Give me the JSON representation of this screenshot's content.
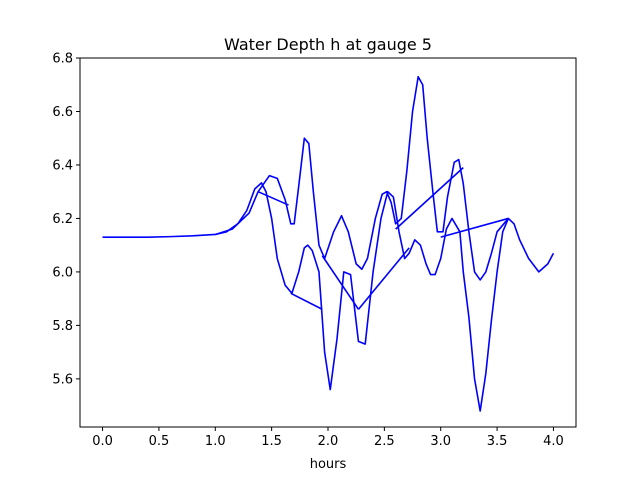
{
  "chart_data": {
    "type": "line",
    "title": "Water Depth h at gauge 5",
    "xlabel": "hours",
    "ylabel": "",
    "xlim": [
      -0.2,
      4.2
    ],
    "ylim": [
      5.42,
      6.8
    ],
    "xticks": [
      0.0,
      0.5,
      1.0,
      1.5,
      2.0,
      2.5,
      3.0,
      3.5,
      4.0
    ],
    "xtick_labels": [
      "0.0",
      "0.5",
      "1.0",
      "1.5",
      "2.0",
      "2.5",
      "3.0",
      "3.5",
      "4.0"
    ],
    "yticks": [
      5.6,
      5.8,
      6.0,
      6.2,
      6.4,
      6.6,
      6.8
    ],
    "ytick_labels": [
      "5.6",
      "5.8",
      "6.0",
      "6.2",
      "6.4",
      "6.6",
      "6.8"
    ],
    "grid": false,
    "series": [
      {
        "color": "#0000ff",
        "x": [
          0.0,
          0.2,
          0.4,
          0.6,
          0.8,
          1.0,
          1.1,
          1.2,
          1.28,
          1.35,
          1.41,
          1.45,
          1.5,
          1.55,
          1.62,
          1.68,
          1.74,
          1.79,
          1.82,
          1.86,
          1.92,
          1.97,
          2.02,
          2.08,
          2.14,
          2.2,
          2.27,
          2.33,
          2.4,
          2.47,
          2.53,
          2.58,
          2.63,
          2.68,
          2.72,
          2.77,
          2.82,
          2.87,
          2.91,
          2.95,
          3.0,
          3.05,
          3.1,
          3.17,
          3.2,
          3.25,
          3.3,
          3.35,
          3.4,
          3.45,
          3.5,
          3.55,
          3.6,
          3.65,
          3.7,
          3.78,
          3.87,
          3.95,
          4.0
        ],
        "y": [
          6.13,
          6.13,
          6.13,
          6.132,
          6.135,
          6.14,
          6.15,
          6.18,
          6.23,
          6.31,
          6.333,
          6.3,
          6.2,
          6.05,
          5.95,
          5.92,
          6.0,
          6.09,
          6.1,
          6.08,
          6.0,
          5.7,
          5.56,
          5.75,
          6.0,
          5.99,
          5.74,
          5.73,
          6.0,
          6.2,
          6.3,
          6.28,
          6.15,
          6.05,
          6.07,
          6.12,
          6.1,
          6.03,
          5.99,
          5.99,
          6.05,
          6.16,
          6.2,
          6.15,
          6.0,
          5.83,
          5.6,
          5.48,
          5.62,
          5.82,
          6.0,
          6.15,
          6.2,
          6.18,
          6.12,
          6.05,
          6.0,
          6.03,
          6.07
        ]
      },
      {
        "color": "#0000ff",
        "x": [
          1.0,
          1.15,
          1.3,
          1.38,
          1.48,
          1.55,
          1.62,
          1.67,
          1.7,
          1.74,
          1.79,
          1.83,
          1.87,
          1.92,
          1.97,
          2.05,
          2.12,
          2.18,
          2.25,
          2.3,
          2.35,
          2.42,
          2.48,
          2.52,
          2.56,
          2.6,
          2.65,
          2.7,
          2.75,
          2.8,
          2.84,
          2.88,
          2.93,
          2.97,
          3.02,
          3.06,
          3.12,
          3.16,
          3.2,
          3.25,
          3.3,
          3.35,
          3.4,
          3.45,
          3.5,
          3.6
        ],
        "y": [
          6.14,
          6.16,
          6.22,
          6.3,
          6.36,
          6.35,
          6.27,
          6.18,
          6.18,
          6.32,
          6.5,
          6.48,
          6.3,
          6.1,
          6.05,
          6.15,
          6.21,
          6.15,
          6.03,
          6.01,
          6.05,
          6.2,
          6.29,
          6.3,
          6.26,
          6.18,
          6.2,
          6.38,
          6.6,
          6.73,
          6.7,
          6.5,
          6.3,
          6.15,
          6.15,
          6.28,
          6.41,
          6.42,
          6.33,
          6.15,
          6.0,
          5.97,
          6.0,
          6.07,
          6.15,
          6.2
        ]
      },
      {
        "color": "#0000ff",
        "x": [
          1.38,
          1.65
        ],
        "y": [
          6.3,
          6.25
        ]
      },
      {
        "color": "#0000ff",
        "x": [
          1.67,
          1.95
        ],
        "y": [
          5.92,
          5.86
        ]
      },
      {
        "color": "#0000ff",
        "x": [
          1.95,
          2.27
        ],
        "y": [
          6.06,
          5.86
        ]
      },
      {
        "color": "#0000ff",
        "x": [
          2.27,
          2.72
        ],
        "y": [
          5.86,
          6.09
        ]
      },
      {
        "color": "#0000ff",
        "x": [
          2.6,
          3.2
        ],
        "y": [
          6.16,
          6.39
        ]
      },
      {
        "color": "#0000ff",
        "x": [
          3.0,
          3.6
        ],
        "y": [
          6.13,
          6.2
        ]
      }
    ]
  }
}
